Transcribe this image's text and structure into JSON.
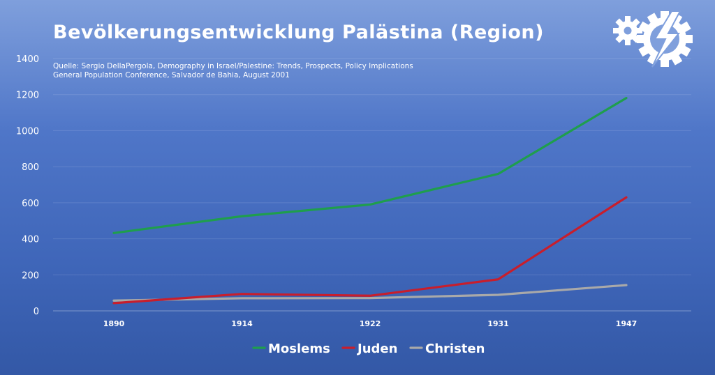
{
  "chart_data": {
    "type": "line",
    "title": "Bevölkerungsentwicklung Palästina (Region)",
    "source_lines": [
      "Quelle: Sergio DellaPergola, Demography in Israel/Palestine: Trends, Prospects, Policy Implications",
      "General Population Conference, Salvador de Bahia, August 2001"
    ],
    "xlabel": "",
    "ylabel": "",
    "categories": [
      "1890",
      "1914",
      "1922",
      "1931",
      "1947"
    ],
    "ylim": [
      0,
      1400
    ],
    "yticks": [
      0,
      200,
      400,
      600,
      800,
      1000,
      1200,
      1400
    ],
    "grid": true,
    "legend_position": "bottom-center",
    "series": [
      {
        "name": "Moslems",
        "color": "#1f9e4d",
        "values": [
          432,
          525,
          590,
          760,
          1181
        ]
      },
      {
        "name": "Juden",
        "color": "#c81e2c",
        "values": [
          43,
          94,
          84,
          175,
          630
        ]
      },
      {
        "name": "Christen",
        "color": "#a9a9a9",
        "values": [
          57,
          70,
          71,
          89,
          143
        ]
      }
    ]
  },
  "logo": {
    "icon": "gear-lightning-logo-icon",
    "color": "#ffffff"
  }
}
